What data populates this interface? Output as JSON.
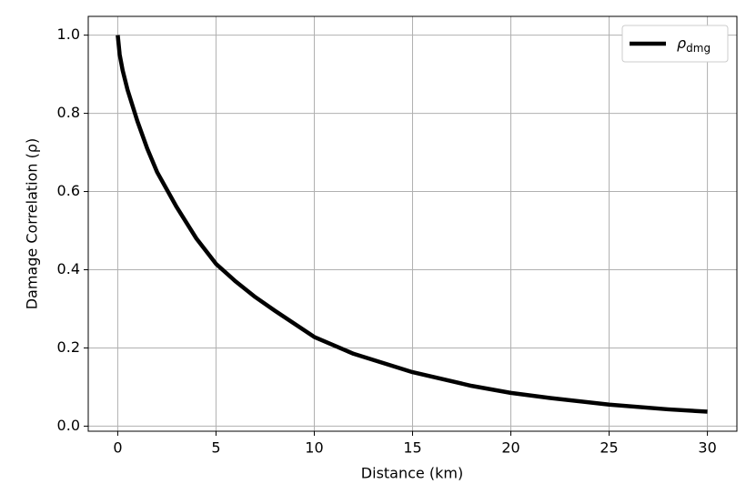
{
  "chart_data": {
    "type": "line",
    "xlabel": "Distance (km)",
    "ylabel": "Damage Correlation (ρ)",
    "x": [
      0,
      0.1,
      0.25,
      0.5,
      1,
      1.5,
      2,
      3,
      4,
      5,
      6,
      7,
      8,
      10,
      12,
      15,
      18,
      20,
      22,
      25,
      28,
      30
    ],
    "series": [
      {
        "name": "ρdmg",
        "color": "#000000",
        "values": [
          1.0,
          0.95,
          0.91,
          0.86,
          0.78,
          0.71,
          0.65,
          0.56,
          0.48,
          0.415,
          0.37,
          0.33,
          0.295,
          0.228,
          0.185,
          0.138,
          0.103,
          0.085,
          0.072,
          0.055,
          0.043,
          0.037
        ]
      }
    ],
    "xlim": [
      -1.5,
      31.5
    ],
    "ylim": [
      -0.013,
      1.048
    ],
    "xticks": [
      0,
      5,
      10,
      15,
      20,
      25,
      30
    ],
    "yticks": [
      {
        "value": 0.0,
        "label": "0.0"
      },
      0.2,
      0.4,
      0.6,
      0.8,
      {
        "value": 1.0,
        "label": "1.0"
      }
    ],
    "grid": true,
    "legend": "upper right"
  }
}
